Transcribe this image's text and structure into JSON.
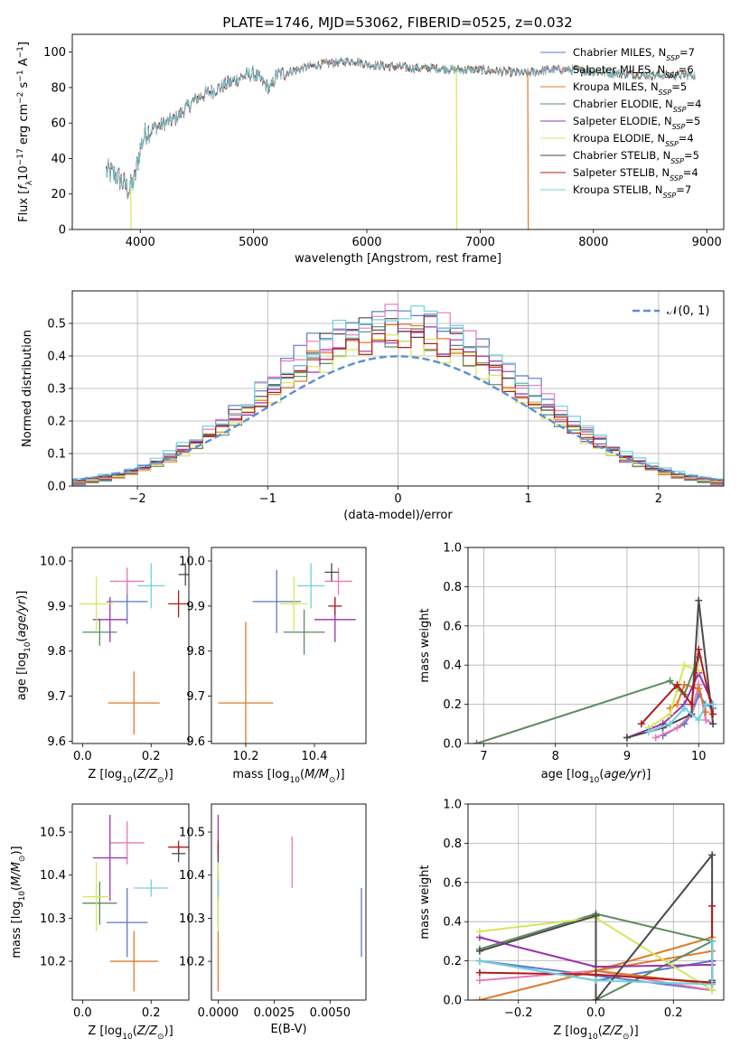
{
  "figure": {
    "title": "PLATE=1746, MJD=53062, FIBERID=0525, z=0.032"
  },
  "colors": {
    "Chabrier MILES": "#5b79c9",
    "Salpeter MILES": "#e879b8",
    "Kroupa MILES": "#e07a2a",
    "Chabrier ELODIE": "#5e8a60",
    "Salpeter ELODIE": "#9a32b0",
    "Kroupa ELODIE": "#d6e65a",
    "Chabrier STELIB": "#4a4a4a",
    "Salpeter STELIB": "#b01c1c",
    "Kroupa STELIB": "#6fd1de"
  },
  "chart_data": [
    {
      "id": "spectrum",
      "type": "line",
      "xlabel": "wavelength [Angstrom, rest frame]",
      "ylabel": "Flux [f_λ 10^-17 erg cm^-2 s^-1 A^-1]",
      "xlim": [
        3400,
        9150
      ],
      "ylim": [
        0,
        110
      ],
      "xticks": [
        4000,
        5000,
        6000,
        7000,
        8000,
        9000
      ],
      "yticks": [
        0,
        20,
        40,
        60,
        80,
        100
      ],
      "legend": [
        {
          "name": "Chabrier MILES",
          "nssp": "7"
        },
        {
          "name": "Salpeter MILES",
          "nssp": "6"
        },
        {
          "name": "Kroupa MILES",
          "nssp": "5"
        },
        {
          "name": "Chabrier ELODIE",
          "nssp": "4"
        },
        {
          "name": "Salpeter ELODIE",
          "nssp": "5"
        },
        {
          "name": "Kroupa ELODIE",
          "nssp": "4"
        },
        {
          "name": "Chabrier STELIB",
          "nssp": "5"
        },
        {
          "name": "Salpeter STELIB",
          "nssp": "4"
        },
        {
          "name": "Kroupa STELIB",
          "nssp": "7"
        }
      ],
      "legend_position": "upper right",
      "continuum": [
        [
          3700,
          33
        ],
        [
          3800,
          30
        ],
        [
          3900,
          22
        ],
        [
          3950,
          28
        ],
        [
          4000,
          46
        ],
        [
          4050,
          55
        ],
        [
          4150,
          58
        ],
        [
          4300,
          62
        ],
        [
          4400,
          68
        ],
        [
          4500,
          74
        ],
        [
          4700,
          80
        ],
        [
          4900,
          86
        ],
        [
          5000,
          88
        ],
        [
          5150,
          79
        ],
        [
          5200,
          87
        ],
        [
          5500,
          92
        ],
        [
          5700,
          94
        ],
        [
          5900,
          95
        ],
        [
          6000,
          93
        ],
        [
          6200,
          92
        ],
        [
          6400,
          91
        ],
        [
          6600,
          91
        ],
        [
          6800,
          90
        ],
        [
          7000,
          90
        ],
        [
          7200,
          89
        ],
        [
          7400,
          88
        ],
        [
          7600,
          90
        ],
        [
          7800,
          90
        ],
        [
          8000,
          89
        ],
        [
          8200,
          88
        ],
        [
          8500,
          87
        ],
        [
          8900,
          87
        ]
      ],
      "dips": [
        {
          "series": "Kroupa ELODIE",
          "x": 3915,
          "to": 0
        },
        {
          "series": "Kroupa ELODIE",
          "x": 6790,
          "to": 0
        },
        {
          "series": "Kroupa MILES",
          "x": 7420,
          "to": 0
        }
      ]
    },
    {
      "id": "residual-histogram",
      "type": "bar",
      "xlabel": "(data-model)/error",
      "ylabel": "Normed distribution",
      "xlim": [
        -2.5,
        2.5
      ],
      "ylim": [
        0,
        0.6
      ],
      "xticks": [
        -2,
        -1,
        0,
        1,
        2
      ],
      "yticks": [
        0.0,
        0.1,
        0.2,
        0.3,
        0.4,
        0.5
      ],
      "grid": true,
      "normal_curve_label": "𝒩(0, 1)",
      "bin_width": 0.1,
      "note": "Stepped histograms for each of the 9 models with values following an approximately normal shape peaking near 0.45–0.56 around x=0."
    },
    {
      "id": "age-vs-z",
      "type": "scatter",
      "xlabel": "Z [log10(Z/Z⊙)]",
      "ylabel": "age [log10(age/yr)]",
      "xlim": [
        -0.03,
        0.31
      ],
      "ylim": [
        9.595,
        10.03
      ],
      "xticks": [
        0.0,
        0.2
      ],
      "yticks": [
        9.6,
        9.7,
        9.8,
        9.9,
        10.0
      ],
      "points": [
        {
          "series": "Chabrier MILES",
          "x": 0.13,
          "y": 9.91,
          "xerr": 0.06,
          "yerr": 0.05
        },
        {
          "series": "Salpeter MILES",
          "x": 0.13,
          "y": 9.955,
          "xerr": 0.05,
          "yerr": 0.03
        },
        {
          "series": "Kroupa MILES",
          "x": 0.15,
          "y": 9.685,
          "xerr": 0.075,
          "yerr": 0.07
        },
        {
          "series": "Chabrier ELODIE",
          "x": 0.05,
          "y": 9.842,
          "xerr": 0.05,
          "yerr": 0.03
        },
        {
          "series": "Salpeter ELODIE",
          "x": 0.08,
          "y": 9.87,
          "xerr": 0.05,
          "yerr": 0.05
        },
        {
          "series": "Kroupa ELODIE",
          "x": 0.04,
          "y": 9.905,
          "xerr": 0.05,
          "yerr": 0.06
        },
        {
          "series": "Chabrier STELIB",
          "x": 0.3,
          "y": 9.97,
          "xerr": 0.02,
          "yerr": 0.025
        },
        {
          "series": "Salpeter STELIB",
          "x": 0.28,
          "y": 9.905,
          "xerr": 0.03,
          "yerr": 0.03
        },
        {
          "series": "Kroupa STELIB",
          "x": 0.2,
          "y": 9.945,
          "xerr": 0.04,
          "yerr": 0.05
        }
      ]
    },
    {
      "id": "age-vs-mass",
      "type": "scatter",
      "xlabel": "mass [log10(M/M⊙)]",
      "ylabel": "",
      "xlim": [
        10.1,
        10.55
      ],
      "ylim": [
        9.595,
        10.03
      ],
      "xticks": [
        10.2,
        10.4
      ],
      "yticks": [
        9.6,
        9.7,
        9.8,
        9.9,
        10.0
      ],
      "points": [
        {
          "series": "Chabrier MILES",
          "x": 10.29,
          "y": 9.91,
          "xerr": 0.07,
          "yerr": 0.07
        },
        {
          "series": "Salpeter MILES",
          "x": 10.47,
          "y": 9.955,
          "xerr": 0.04,
          "yerr": 0.03
        },
        {
          "series": "Kroupa MILES",
          "x": 10.2,
          "y": 9.685,
          "xerr": 0.08,
          "yerr": 0.18
        },
        {
          "series": "Chabrier ELODIE",
          "x": 10.37,
          "y": 9.842,
          "xerr": 0.06,
          "yerr": 0.05
        },
        {
          "series": "Salpeter ELODIE",
          "x": 10.46,
          "y": 9.87,
          "xerr": 0.06,
          "yerr": 0.05
        },
        {
          "series": "Kroupa ELODIE",
          "x": 10.34,
          "y": 9.905,
          "xerr": 0.04,
          "yerr": 0.06
        },
        {
          "series": "Chabrier STELIB",
          "x": 10.45,
          "y": 9.975,
          "xerr": 0.02,
          "yerr": 0.02
        },
        {
          "series": "Salpeter STELIB",
          "x": 10.46,
          "y": 9.9,
          "xerr": 0.02,
          "yerr": 0.02
        },
        {
          "series": "Kroupa STELIB",
          "x": 10.39,
          "y": 9.945,
          "xerr": 0.04,
          "yerr": 0.05
        }
      ]
    },
    {
      "id": "weight-vs-age",
      "type": "line",
      "xlabel": "age [log10(age/yr)]",
      "ylabel": "mass weight",
      "xlim": [
        6.78,
        10.35
      ],
      "ylim": [
        0,
        1
      ],
      "xticks": [
        7,
        8,
        9,
        10
      ],
      "yticks": [
        0.0,
        0.2,
        0.4,
        0.6,
        0.8,
        1.0
      ],
      "grid": true,
      "series": [
        {
          "name": "Chabrier MILES",
          "x": [
            9.5,
            9.8,
            9.9,
            10.0,
            10.1,
            10.2
          ],
          "y": [
            0.04,
            0.1,
            0.15,
            0.25,
            0.2,
            0.18
          ]
        },
        {
          "name": "Salpeter MILES",
          "x": [
            9.4,
            9.7,
            9.9,
            10.0,
            10.1,
            10.2
          ],
          "y": [
            0.03,
            0.08,
            0.15,
            0.3,
            0.12,
            0.1
          ]
        },
        {
          "name": "Kroupa MILES",
          "x": [
            9.6,
            9.7,
            9.8,
            10.0,
            10.1
          ],
          "y": [
            0.18,
            0.2,
            0.3,
            0.28,
            0.16
          ]
        },
        {
          "name": "Chabrier ELODIE",
          "x": [
            6.9,
            9.6,
            9.7,
            9.8,
            10.0
          ],
          "y": [
            0.0,
            0.32,
            0.28,
            0.25,
            0.44
          ]
        },
        {
          "name": "Salpeter ELODIE",
          "x": [
            9.0,
            9.5,
            9.8,
            10.0,
            10.2
          ],
          "y": [
            0.03,
            0.1,
            0.2,
            0.36,
            0.2
          ]
        },
        {
          "name": "Kroupa ELODIE",
          "x": [
            9.3,
            9.6,
            9.8,
            10.0
          ],
          "y": [
            0.08,
            0.15,
            0.4,
            0.37
          ]
        },
        {
          "name": "Chabrier STELIB",
          "x": [
            9.0,
            9.5,
            9.9,
            10.0,
            10.2
          ],
          "y": [
            0.03,
            0.08,
            0.15,
            0.73,
            0.1
          ]
        },
        {
          "name": "Salpeter STELIB",
          "x": [
            9.2,
            9.7,
            9.9,
            10.0,
            10.2
          ],
          "y": [
            0.1,
            0.3,
            0.2,
            0.48,
            0.15
          ]
        },
        {
          "name": "Kroupa STELIB",
          "x": [
            9.3,
            9.6,
            9.8,
            10.0,
            10.1,
            10.2
          ],
          "y": [
            0.06,
            0.1,
            0.18,
            0.12,
            0.2,
            0.2
          ]
        }
      ]
    },
    {
      "id": "mass-vs-z",
      "type": "scatter",
      "xlabel": "Z [log10(Z/Z⊙)]",
      "ylabel": "mass [log10(M/M⊙)]",
      "xlim": [
        -0.03,
        0.31
      ],
      "ylim": [
        10.11,
        10.565
      ],
      "xticks": [
        0.0,
        0.2
      ],
      "yticks": [
        10.2,
        10.3,
        10.4,
        10.5
      ],
      "points": [
        {
          "series": "Chabrier MILES",
          "x": 0.13,
          "y": 10.29,
          "xerr": 0.06,
          "yerr": 0.08
        },
        {
          "series": "Salpeter MILES",
          "x": 0.13,
          "y": 10.475,
          "xerr": 0.05,
          "yerr": 0.05
        },
        {
          "series": "Kroupa MILES",
          "x": 0.15,
          "y": 10.2,
          "xerr": 0.07,
          "yerr": 0.07
        },
        {
          "series": "Chabrier ELODIE",
          "x": 0.05,
          "y": 10.335,
          "xerr": 0.05,
          "yerr": 0.05
        },
        {
          "series": "Salpeter ELODIE",
          "x": 0.08,
          "y": 10.44,
          "xerr": 0.05,
          "yerr": 0.1
        },
        {
          "series": "Kroupa ELODIE",
          "x": 0.04,
          "y": 10.35,
          "xerr": 0.04,
          "yerr": 0.08
        },
        {
          "series": "Chabrier STELIB",
          "x": 0.28,
          "y": 10.45,
          "xerr": 0.02,
          "yerr": 0.02
        },
        {
          "series": "Salpeter STELIB",
          "x": 0.28,
          "y": 10.465,
          "xerr": 0.03,
          "yerr": 0.015
        },
        {
          "series": "Kroupa STELIB",
          "x": 0.2,
          "y": 10.37,
          "xerr": 0.05,
          "yerr": 0.02
        }
      ]
    },
    {
      "id": "mass-vs-ebv",
      "type": "scatter",
      "xlabel": "E(B-V)",
      "ylabel": "",
      "xlim": [
        -0.0003,
        0.0066
      ],
      "ylim": [
        10.11,
        10.565
      ],
      "xticks": [
        0.0,
        0.0025,
        0.005
      ],
      "xticklabels": [
        "0.0000",
        "0.0025",
        "0.0050"
      ],
      "yticks": [
        10.2,
        10.3,
        10.4,
        10.5
      ],
      "points": [
        {
          "series": "Chabrier MILES",
          "x": 0.0064,
          "y": 10.29,
          "yerr": 0.08
        },
        {
          "series": "Salpeter MILES",
          "x": 0.0033,
          "y": 10.43,
          "yerr": 0.06
        },
        {
          "series": "Kroupa MILES",
          "x": 0.0,
          "y": 10.2,
          "yerr": 0.07
        },
        {
          "series": "Chabrier ELODIE",
          "x": 0.0,
          "y": 10.34,
          "yerr": 0.06
        },
        {
          "series": "Salpeter ELODIE",
          "x": 0.0,
          "y": 10.44,
          "yerr": 0.1
        },
        {
          "series": "Kroupa ELODIE",
          "x": 0.0,
          "y": 10.35,
          "yerr": 0.08
        },
        {
          "series": "Chabrier STELIB",
          "x": 0.0,
          "y": 10.45,
          "yerr": 0.02
        },
        {
          "series": "Salpeter STELIB",
          "x": 0.0,
          "y": 10.465,
          "yerr": 0.015
        },
        {
          "series": "Kroupa STELIB",
          "x": 0.0,
          "y": 10.37,
          "yerr": 0.02
        }
      ]
    },
    {
      "id": "weight-vs-z",
      "type": "line",
      "xlabel": "Z [log10(Z/Z⊙)]",
      "ylabel": "mass weight",
      "xlim": [
        -0.33,
        0.33
      ],
      "ylim": [
        0,
        1
      ],
      "xticks": [
        -0.2,
        0.0,
        0.2
      ],
      "yticks": [
        0.0,
        0.2,
        0.4,
        0.6,
        0.8,
        1.0
      ],
      "grid": true,
      "series": [
        {
          "name": "Chabrier MILES",
          "x": [
            -0.3,
            0.0,
            0.3,
            0.3,
            -0.3
          ],
          "y": [
            0.2,
            0.1,
            0.2,
            0.05,
            0.2
          ]
        },
        {
          "name": "Salpeter MILES",
          "x": [
            -0.3,
            0.0,
            0.3,
            0.3
          ],
          "y": [
            0.1,
            0.15,
            0.05,
            0.3
          ]
        },
        {
          "name": "Kroupa MILES",
          "x": [
            -0.3,
            0.0,
            0.3,
            0.3,
            0.0,
            0.3
          ],
          "y": [
            0.0,
            0.15,
            0.32,
            0.25,
            0.15,
            0.08
          ]
        },
        {
          "name": "Chabrier ELODIE",
          "x": [
            -0.3,
            0.0,
            0.0,
            0.3,
            0.0
          ],
          "y": [
            0.26,
            0.44,
            0.0,
            0.3,
            0.44
          ]
        },
        {
          "name": "Salpeter ELODIE",
          "x": [
            -0.3,
            0.0,
            0.3,
            0.3
          ],
          "y": [
            0.32,
            0.17,
            0.18,
            0.2
          ]
        },
        {
          "name": "Kroupa ELODIE",
          "x": [
            -0.3,
            0.0,
            0.3
          ],
          "y": [
            0.35,
            0.42,
            0.05
          ]
        },
        {
          "name": "Chabrier STELIB",
          "x": [
            -0.3,
            0.0,
            0.0,
            0.3,
            0.3
          ],
          "y": [
            0.25,
            0.43,
            0.0,
            0.74,
            0.1
          ]
        },
        {
          "name": "Salpeter STELIB",
          "x": [
            -0.3,
            0.0,
            0.3,
            0.3
          ],
          "y": [
            0.14,
            0.13,
            0.09,
            0.48
          ]
        },
        {
          "name": "Kroupa STELIB",
          "x": [
            -0.3,
            0.0,
            0.3,
            0.3
          ],
          "y": [
            0.2,
            0.1,
            0.08,
            0.3
          ]
        }
      ]
    }
  ]
}
